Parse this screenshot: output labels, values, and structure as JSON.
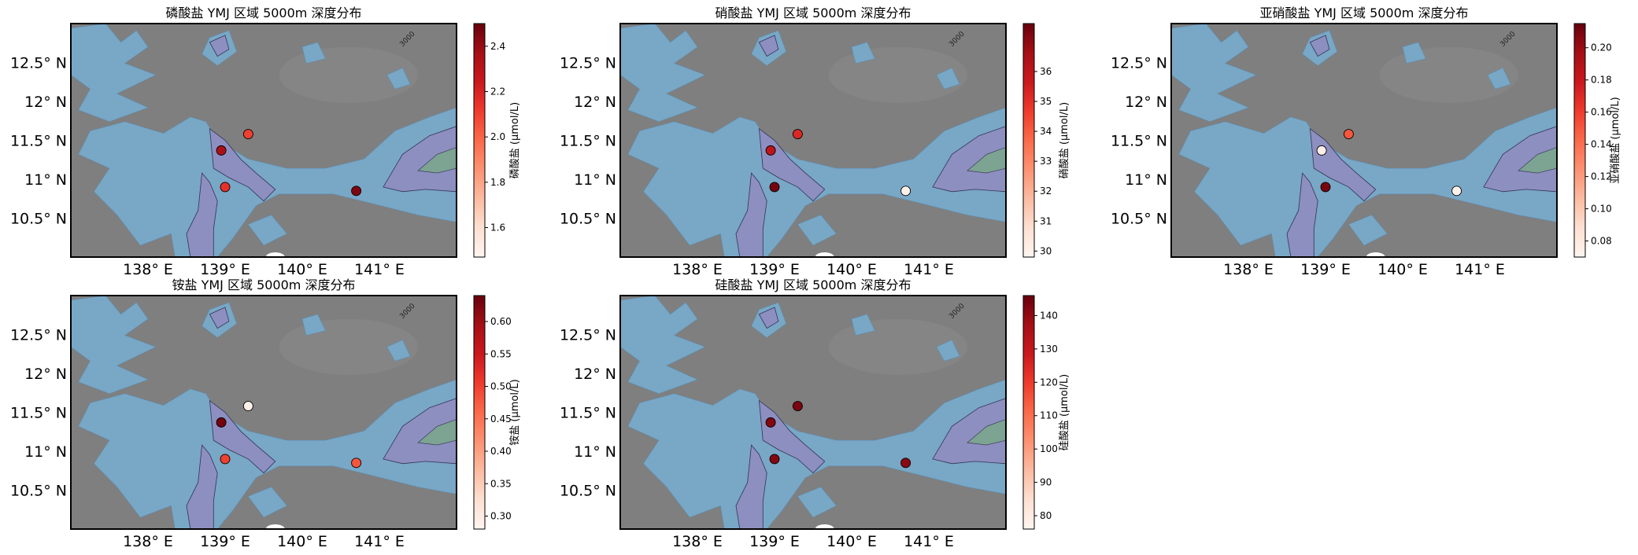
{
  "figure": {
    "colormap": "Reds",
    "map_colors": {
      "land": "#7f7f7f",
      "shallow": "#79a7c6",
      "mid": "#8c8fbf",
      "deep": "#7da392",
      "frame": "#000000"
    },
    "contour_label": "3000",
    "x_ticks": [
      {
        "lon": 138,
        "label": "138° E"
      },
      {
        "lon": 139,
        "label": "139° E"
      },
      {
        "lon": 140,
        "label": "140° E"
      },
      {
        "lon": 141,
        "label": "141° E"
      }
    ],
    "y_ticks": [
      {
        "lat": 12.5,
        "label": "12.5° N"
      },
      {
        "lat": 12.0,
        "label": "12° N"
      },
      {
        "lat": 11.5,
        "label": "11.5° N"
      },
      {
        "lat": 11.0,
        "label": "11° N"
      },
      {
        "lat": 10.5,
        "label": "10.5° N"
      }
    ],
    "lon_range": [
      137.0,
      142.0
    ],
    "lat_range": [
      10.0,
      13.0
    ]
  },
  "chart_data": [
    {
      "type": "scatter",
      "title": "磷酸盐 YMJ 区域 5000m 深度分布",
      "colorbar_label": "磷酸盐 (μmol/L)",
      "clim": [
        1.47,
        2.5
      ],
      "colorbar_ticks": [
        {
          "value": 2.4,
          "label": "2.4"
        },
        {
          "value": 2.2,
          "label": "2.2"
        },
        {
          "value": 2.0,
          "label": "2.0"
        },
        {
          "value": 1.8,
          "label": "1.8"
        },
        {
          "value": 1.6,
          "label": "1.6"
        }
      ],
      "points": [
        {
          "lon": 139.3,
          "lat": 11.58,
          "value": 2.1
        },
        {
          "lon": 138.95,
          "lat": 11.37,
          "value": 2.35
        },
        {
          "lon": 139.0,
          "lat": 10.9,
          "value": 2.15
        },
        {
          "lon": 140.7,
          "lat": 10.85,
          "value": 2.45
        }
      ]
    },
    {
      "type": "scatter",
      "title": "硝酸盐 YMJ 区域 5000m 深度分布",
      "colorbar_label": "硝酸盐 (μmol/L)",
      "clim": [
        29.8,
        37.6
      ],
      "colorbar_ticks": [
        {
          "value": 36,
          "label": "36"
        },
        {
          "value": 35,
          "label": "35"
        },
        {
          "value": 34,
          "label": "34"
        },
        {
          "value": 33,
          "label": "33"
        },
        {
          "value": 32,
          "label": "32"
        },
        {
          "value": 31,
          "label": "31"
        },
        {
          "value": 30,
          "label": "30"
        }
      ],
      "points": [
        {
          "lon": 139.3,
          "lat": 11.58,
          "value": 35.2
        },
        {
          "lon": 138.95,
          "lat": 11.37,
          "value": 36.0
        },
        {
          "lon": 139.0,
          "lat": 10.9,
          "value": 37.4
        },
        {
          "lon": 140.7,
          "lat": 10.85,
          "value": 30.0
        }
      ]
    },
    {
      "type": "scatter",
      "title": "亚硝酸盐 YMJ 区域 5000m 深度分布",
      "colorbar_label": "亚硝酸盐 (μmol/L)",
      "clim": [
        0.07,
        0.215
      ],
      "colorbar_ticks": [
        {
          "value": 0.2,
          "label": "0.20"
        },
        {
          "value": 0.18,
          "label": "0.18"
        },
        {
          "value": 0.16,
          "label": "0.16"
        },
        {
          "value": 0.14,
          "label": "0.14"
        },
        {
          "value": 0.12,
          "label": "0.12"
        },
        {
          "value": 0.1,
          "label": "0.10"
        },
        {
          "value": 0.08,
          "label": "0.08"
        }
      ],
      "points": [
        {
          "lon": 139.3,
          "lat": 11.58,
          "value": 0.15
        },
        {
          "lon": 138.95,
          "lat": 11.37,
          "value": 0.075
        },
        {
          "lon": 139.0,
          "lat": 10.9,
          "value": 0.21
        },
        {
          "lon": 140.7,
          "lat": 10.85,
          "value": 0.073
        }
      ]
    },
    {
      "type": "scatter",
      "title": "铵盐 YMJ 区域 5000m 深度分布",
      "colorbar_label": "铵盐 (μmol/L)",
      "clim": [
        0.28,
        0.64
      ],
      "colorbar_ticks": [
        {
          "value": 0.6,
          "label": "0.60"
        },
        {
          "value": 0.55,
          "label": "0.55"
        },
        {
          "value": 0.5,
          "label": "0.50"
        },
        {
          "value": 0.45,
          "label": "0.45"
        },
        {
          "value": 0.4,
          "label": "0.40"
        },
        {
          "value": 0.35,
          "label": "0.35"
        },
        {
          "value": 0.3,
          "label": "0.30"
        }
      ],
      "points": [
        {
          "lon": 139.3,
          "lat": 11.58,
          "value": 0.29
        },
        {
          "lon": 138.95,
          "lat": 11.37,
          "value": 0.63
        },
        {
          "lon": 139.0,
          "lat": 10.9,
          "value": 0.5
        },
        {
          "lon": 140.7,
          "lat": 10.85,
          "value": 0.48
        }
      ]
    },
    {
      "type": "scatter",
      "title": "硅酸盐 YMJ 区域 5000m 深度分布",
      "colorbar_label": "硅酸盐 (μmol/L)",
      "clim": [
        76,
        146
      ],
      "colorbar_ticks": [
        {
          "value": 140,
          "label": "140"
        },
        {
          "value": 130,
          "label": "130"
        },
        {
          "value": 120,
          "label": "120"
        },
        {
          "value": 110,
          "label": "110"
        },
        {
          "value": 100,
          "label": "100"
        },
        {
          "value": 90,
          "label": "90"
        },
        {
          "value": 80,
          "label": "80"
        }
      ],
      "points": [
        {
          "lon": 139.3,
          "lat": 11.58,
          "value": 143
        },
        {
          "lon": 138.95,
          "lat": 11.37,
          "value": 142
        },
        {
          "lon": 139.0,
          "lat": 10.9,
          "value": 142
        },
        {
          "lon": 140.7,
          "lat": 10.85,
          "value": 141
        }
      ]
    }
  ]
}
